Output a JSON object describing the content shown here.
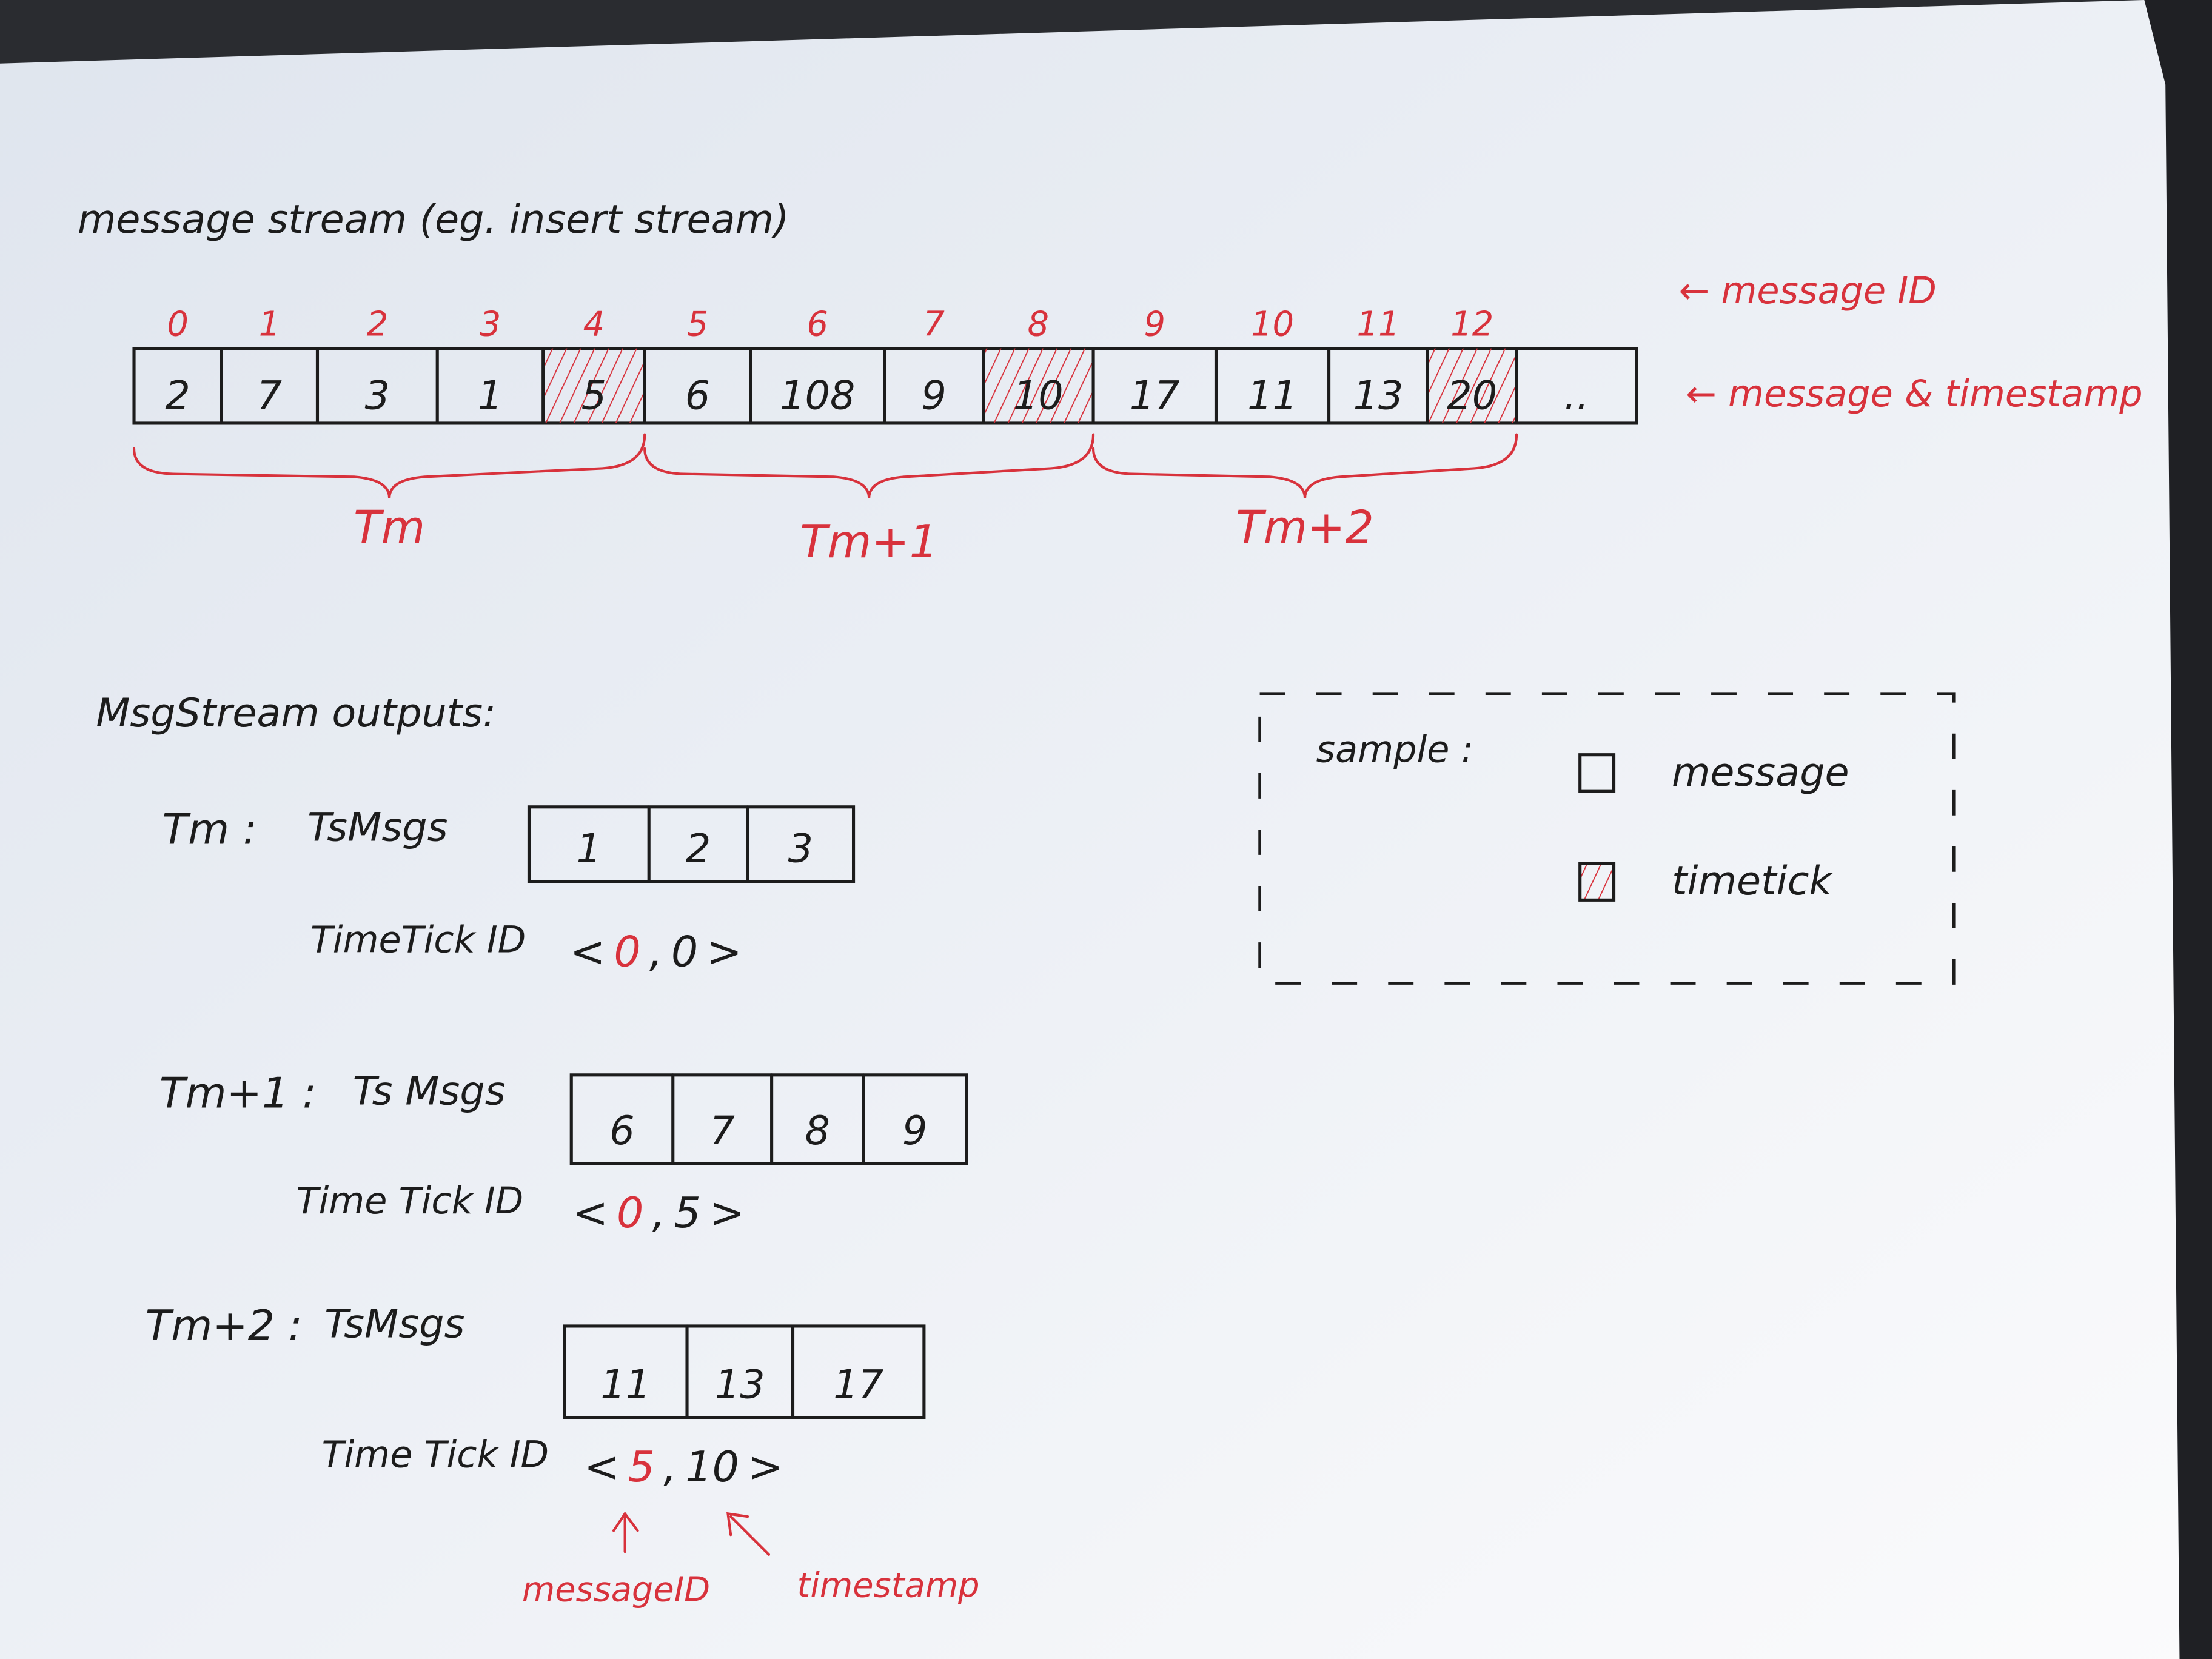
{
  "title": "message stream (eg. insert stream)",
  "colors": {
    "ink": "#1c1c1c",
    "accent": "#d8323c",
    "paper": "#eef1f6"
  },
  "stream": {
    "message_ids": [
      "0",
      "1",
      "2",
      "3",
      "4",
      "5",
      "6",
      "7",
      "8",
      "9",
      "10",
      "11",
      "12"
    ],
    "timestamps": [
      "2",
      "7",
      "3",
      "1",
      "5",
      "6",
      "108",
      "9",
      "10",
      "17",
      "11",
      "13",
      "20",
      ".."
    ],
    "timetick_indices": [
      4,
      8,
      12
    ],
    "id_label": "← message ID",
    "ts_label": "← message & timestamp",
    "groups": [
      {
        "label": "Tm",
        "from_index": 0,
        "to_index": 4
      },
      {
        "label": "Tm+1",
        "from_index": 5,
        "to_index": 8
      },
      {
        "label": "Tm+2",
        "from_index": 9,
        "to_index": 12
      }
    ]
  },
  "outputs": {
    "heading": "MsgStream outputs:",
    "items": [
      {
        "period": "Tm :",
        "msgs_label": "TsMsgs",
        "msgs": [
          "1",
          "2",
          "3"
        ],
        "tt_label": "TimeTick ID",
        "tt_open": "<",
        "tt_id": "0",
        "tt_sep": ",",
        "tt_ts": "0",
        "tt_close": ">"
      },
      {
        "period": "Tm+1 :",
        "msgs_label": "Ts Msgs",
        "msgs": [
          "6",
          "7",
          "8",
          "9"
        ],
        "tt_label": "Time Tick ID",
        "tt_open": "<",
        "tt_id": "0",
        "tt_sep": ",",
        "tt_ts": "5",
        "tt_close": ">"
      },
      {
        "period": "Tm+2 :",
        "msgs_label": "TsMsgs",
        "msgs": [
          "11",
          "13",
          "17"
        ],
        "tt_label": "Time Tick ID",
        "tt_open": "<",
        "tt_id": "5",
        "tt_sep": ",",
        "tt_ts": "10",
        "tt_close": ">"
      }
    ],
    "annot_id": "messageID",
    "annot_ts": "timestamp"
  },
  "legend": {
    "title": "sample :",
    "items": [
      {
        "label": "message",
        "hatched": false
      },
      {
        "label": "timetick",
        "hatched": true
      }
    ]
  }
}
